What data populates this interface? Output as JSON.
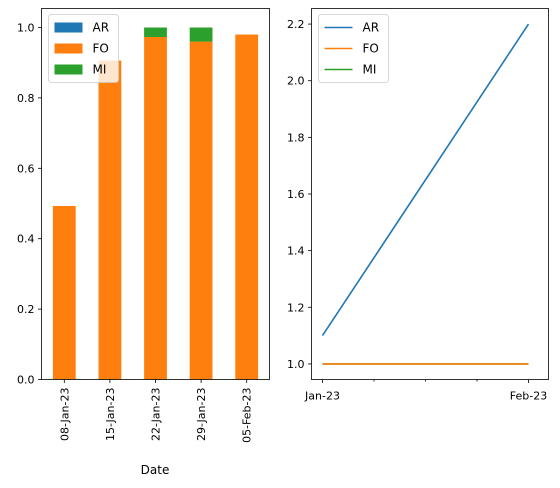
{
  "chart_data": [
    {
      "type": "bar",
      "stacked": true,
      "categories": [
        "08-Jan-23",
        "15-Jan-23",
        "22-Jan-23",
        "29-Jan-23",
        "05-Feb-23"
      ],
      "series": [
        {
          "name": "AR",
          "color": "#1f77b4",
          "values": [
            0,
            0,
            0,
            0,
            0
          ]
        },
        {
          "name": "FO",
          "color": "#ff7f0e",
          "values": [
            0.493,
            0.906,
            0.973,
            0.96,
            0.98
          ]
        },
        {
          "name": "MI",
          "color": "#2ca02c",
          "values": [
            0,
            0,
            0.027,
            0.04,
            0
          ]
        }
      ],
      "xlabel": "Date",
      "ylabel": "",
      "ylim": [
        0,
        1.0
      ],
      "yticks": [
        "0.0",
        "0.2",
        "0.4",
        "0.6",
        "0.8",
        "1.0"
      ],
      "legend": "top-left",
      "grid": false
    },
    {
      "type": "line",
      "x": [
        "Jan-23",
        "Feb-23"
      ],
      "xticks": [
        "Jan-23",
        "Feb-23"
      ],
      "series": [
        {
          "name": "AR",
          "color": "#1f77b4",
          "values": [
            1.1,
            2.2
          ]
        },
        {
          "name": "FO",
          "color": "#ff7f0e",
          "values": [
            1.0,
            1.0
          ]
        },
        {
          "name": "MI",
          "color": "#2ca02c",
          "values": [
            1.0,
            1.0
          ]
        }
      ],
      "xlabel": "",
      "ylabel": "",
      "ylim": [
        0.945,
        2.255
      ],
      "yticks": [
        "1.0",
        "1.2",
        "1.4",
        "1.6",
        "1.8",
        "2.0",
        "2.2"
      ],
      "legend": "top-left",
      "grid": false
    }
  ]
}
